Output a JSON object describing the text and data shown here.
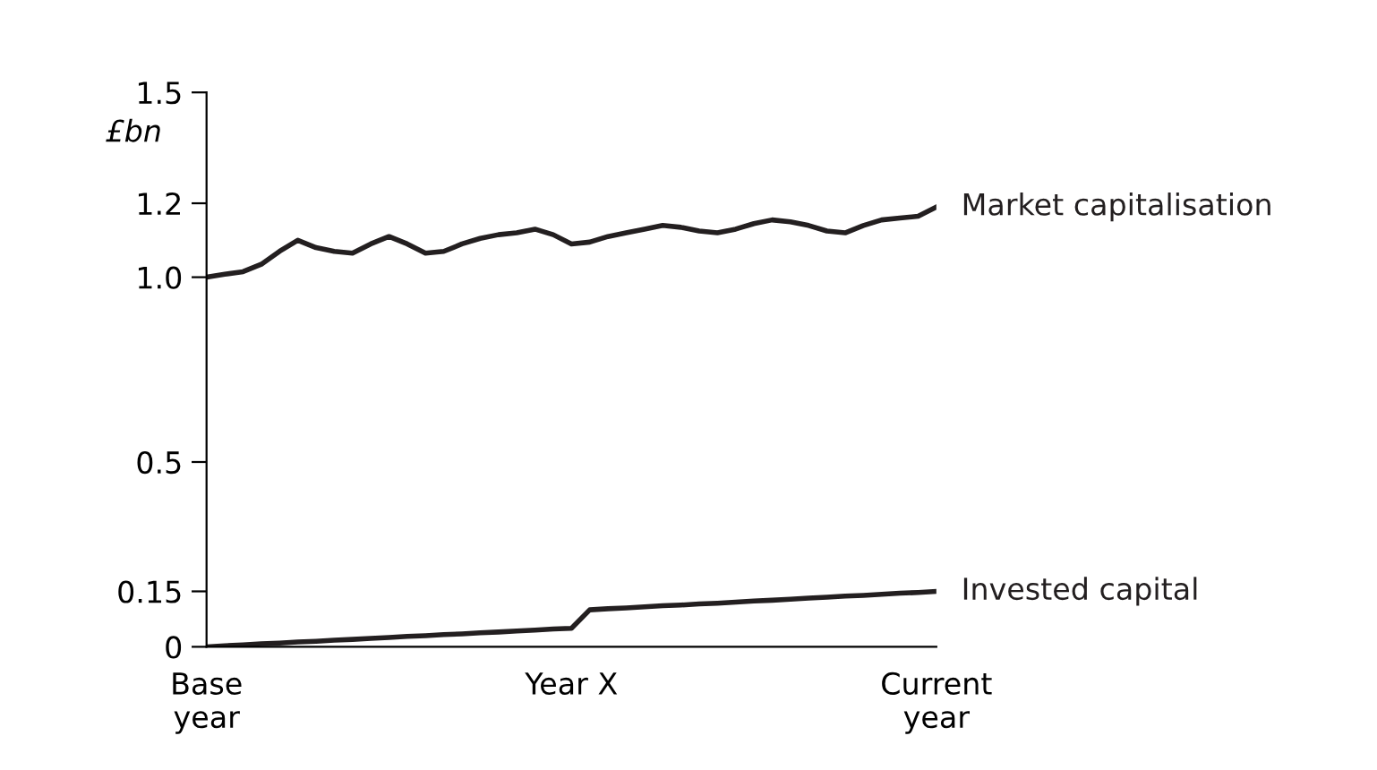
{
  "chart_data": {
    "type": "line",
    "ylabel": "£bn",
    "categories": [
      "Base\nyear",
      null,
      null,
      null,
      null,
      null,
      null,
      null,
      null,
      null,
      null,
      null,
      null,
      null,
      null,
      null,
      null,
      null,
      null,
      null,
      "Year X",
      null,
      null,
      null,
      null,
      null,
      null,
      null,
      null,
      null,
      null,
      null,
      null,
      null,
      null,
      null,
      null,
      null,
      null,
      null,
      "Current\nyear"
    ],
    "ylim": [
      0,
      1.5
    ],
    "yticks": [
      0,
      0.15,
      0.5,
      {
        "value": 1.0,
        "label": "1.0"
      },
      1.2,
      1.5
    ],
    "grid": false,
    "legend": false,
    "marker": "none",
    "line_style": "solid",
    "series": [
      {
        "name": "Market capitalisation",
        "color": "#231f20",
        "values": [
          1.0,
          1.008,
          1.015,
          1.035,
          1.07,
          1.1,
          1.08,
          1.07,
          1.065,
          1.09,
          1.11,
          1.09,
          1.065,
          1.07,
          1.09,
          1.105,
          1.115,
          1.12,
          1.13,
          1.115,
          1.09,
          1.095,
          1.11,
          1.12,
          1.13,
          1.14,
          1.135,
          1.125,
          1.12,
          1.13,
          1.145,
          1.155,
          1.15,
          1.14,
          1.125,
          1.12,
          1.14,
          1.155,
          1.16,
          1.165,
          1.19
        ]
      },
      {
        "name": "Invested capital",
        "color": "#231f20",
        "values": [
          0,
          0.003,
          0.005,
          0.008,
          0.01,
          0.013,
          0.015,
          0.018,
          0.02,
          0.023,
          0.025,
          0.028,
          0.03,
          0.033,
          0.035,
          0.038,
          0.04,
          0.043,
          0.045,
          0.048,
          0.05,
          0.1,
          0.103,
          0.105,
          0.108,
          0.111,
          0.113,
          0.116,
          0.118,
          0.121,
          0.124,
          0.126,
          0.129,
          0.132,
          0.134,
          0.137,
          0.139,
          0.142,
          0.145,
          0.147,
          0.15
        ]
      }
    ]
  }
}
